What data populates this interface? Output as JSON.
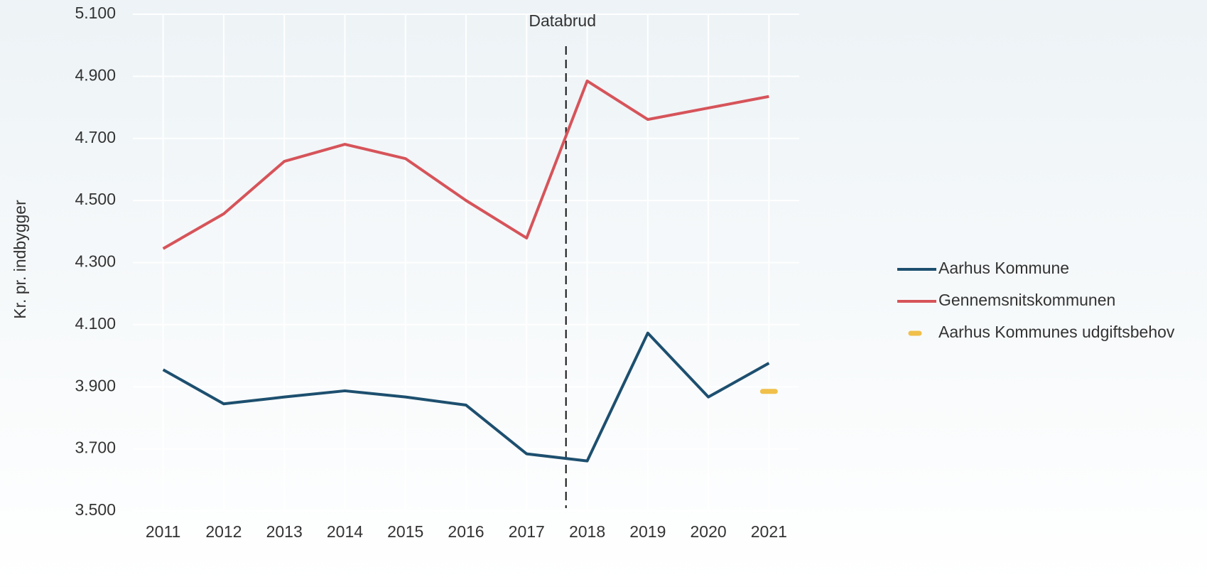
{
  "chart_data": {
    "type": "line",
    "ylabel": "Kr. pr. indbygger",
    "x": [
      2011,
      2012,
      2013,
      2014,
      2015,
      2016,
      2017,
      2018,
      2019,
      2020,
      2021
    ],
    "xlim": [
      2010.5,
      2021.5
    ],
    "xticks": [
      2011,
      2012,
      2013,
      2014,
      2015,
      2016,
      2017,
      2018,
      2019,
      2020,
      2021
    ],
    "ylim": [
      3500,
      5100
    ],
    "yticks": [
      {
        "value": 3500,
        "label": "3.500"
      },
      {
        "value": 3700,
        "label": "3.700"
      },
      {
        "value": 3900,
        "label": "3.900"
      },
      {
        "value": 4100,
        "label": "4.100"
      },
      {
        "value": 4300,
        "label": "4.300"
      },
      {
        "value": 4500,
        "label": "4.500"
      },
      {
        "value": 4700,
        "label": "4.700"
      },
      {
        "value": 4900,
        "label": "4.900"
      },
      {
        "value": 5100,
        "label": "5.100"
      }
    ],
    "grid": true,
    "legend": "right",
    "series": [
      {
        "name": "Aarhus Kommune",
        "color": "#1d4f6f",
        "values": [
          3955,
          3845,
          3867,
          3887,
          3867,
          3841,
          3684,
          3661,
          4073,
          3867,
          3976
        ]
      },
      {
        "name": "Gennemsnitskommunen",
        "color": "#d6545a",
        "values": [
          4345,
          4457,
          4626,
          4681,
          4635,
          4500,
          4379,
          4885,
          4761,
          4798,
          4835
        ]
      },
      {
        "name": "Aarhus Kommunes udgiftsbehov",
        "color": "#f0c04a",
        "values": [
          null,
          null,
          null,
          null,
          null,
          null,
          null,
          null,
          null,
          null,
          3885
        ]
      }
    ],
    "annotations": [
      {
        "text": "Databrud",
        "x": 2017.65
      }
    ]
  }
}
